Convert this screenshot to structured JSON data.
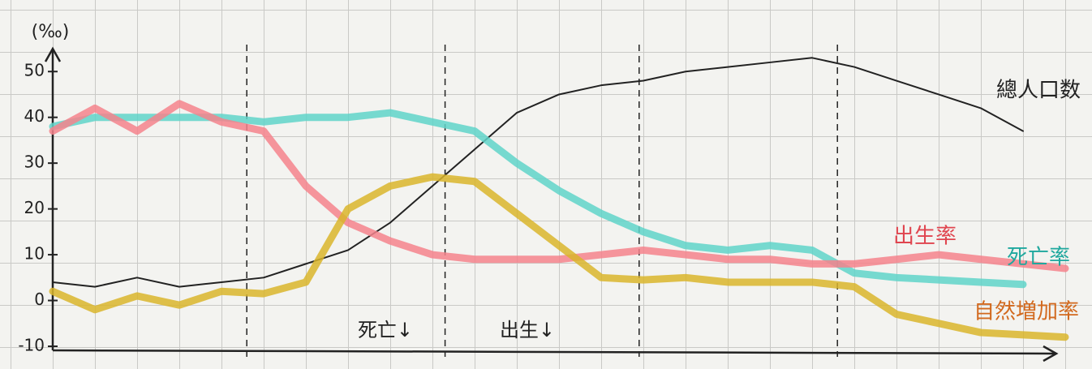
{
  "chart_data": {
    "type": "line",
    "y_label": "(‰)",
    "x": [
      0,
      1,
      2,
      3,
      4,
      5,
      6,
      7,
      8,
      9,
      10,
      11,
      12,
      13,
      14,
      15,
      16,
      17,
      18,
      19,
      20,
      21,
      22,
      23,
      24
    ],
    "xlim": [
      0,
      24
    ],
    "ylim": [
      -10,
      55
    ],
    "yticks": [
      -10,
      0,
      10,
      20,
      30,
      40,
      50
    ],
    "stage_dividers": [
      4.6,
      9.3,
      13.9,
      18.6
    ],
    "series": [
      {
        "name": "總人口数",
        "color": "#222222",
        "values": [
          4,
          3,
          5,
          3,
          4,
          5,
          8,
          11,
          17,
          25,
          33,
          41,
          45,
          47,
          48,
          50,
          51,
          52,
          53,
          51,
          48,
          45,
          42,
          37,
          null
        ]
      },
      {
        "name": "出生率",
        "color": "#5fd3c9",
        "values": [
          38,
          40,
          40,
          40,
          40,
          39,
          40,
          40,
          41,
          39,
          37,
          30,
          24,
          19,
          15,
          12,
          11,
          12,
          11,
          6,
          5,
          4.5,
          4,
          3.5,
          null
        ]
      },
      {
        "name": "死亡率",
        "color": "#f5828c",
        "values": [
          37,
          42,
          37,
          43,
          39,
          37,
          25,
          17,
          13,
          10,
          9,
          9,
          9,
          10,
          11,
          10,
          9,
          9,
          8,
          8,
          9,
          10,
          9,
          8,
          7
        ]
      },
      {
        "name": "自然増加率",
        "color": "#d9b52c",
        "values": [
          2,
          -2,
          1,
          -1,
          2,
          1.5,
          4,
          20,
          25,
          27,
          26,
          19,
          12,
          5,
          4.5,
          5,
          4,
          4,
          4,
          3,
          -3,
          -5,
          -7,
          -7.5,
          -8
        ]
      }
    ],
    "annotations": [
      "死亡↓",
      "出生↓"
    ]
  }
}
